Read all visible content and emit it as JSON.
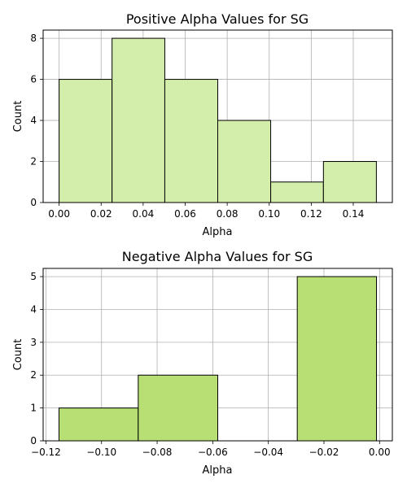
{
  "chart_data": [
    {
      "type": "bar",
      "title": "Positive Alpha Values for SG",
      "xlabel": "Alpha",
      "ylabel": "Count",
      "bin_edges": [
        0.0,
        0.0252,
        0.0503,
        0.0755,
        0.1007,
        0.1258,
        0.151
      ],
      "values": [
        6,
        8,
        6,
        4,
        1,
        2
      ],
      "xlim": [
        -0.0076,
        0.1586
      ],
      "ylim": [
        0,
        8.4
      ],
      "xticks": [
        0.0,
        0.02,
        0.04,
        0.06,
        0.08,
        0.1,
        0.12,
        0.14
      ],
      "xtick_labels": [
        "0.00",
        "0.02",
        "0.04",
        "0.06",
        "0.08",
        "0.10",
        "0.12",
        "0.14"
      ],
      "yticks": [
        0,
        2,
        4,
        6,
        8
      ],
      "ytick_labels": [
        "0",
        "2",
        "4",
        "6",
        "8"
      ],
      "grid": true,
      "color": "#d3edaa"
    },
    {
      "type": "bar",
      "title": "Negative Alpha Values for SG",
      "xlabel": "Alpha",
      "ylabel": "Count",
      "bin_edges": [
        -0.1153,
        -0.0868,
        -0.0582,
        -0.0296,
        -0.0011
      ],
      "values": [
        1,
        2,
        0,
        5
      ],
      "xlim": [
        -0.121,
        0.0046
      ],
      "ylim": [
        0,
        5.25
      ],
      "xticks": [
        -0.12,
        -0.1,
        -0.08,
        -0.06,
        -0.04,
        -0.02,
        0.0
      ],
      "xtick_labels": [
        "−0.12",
        "−0.10",
        "−0.08",
        "−0.06",
        "−0.04",
        "−0.02",
        "0.00"
      ],
      "yticks": [
        0,
        1,
        2,
        3,
        4,
        5
      ],
      "ytick_labels": [
        "0",
        "1",
        "2",
        "3",
        "4",
        "5"
      ],
      "grid": true,
      "color": "#b8df74"
    }
  ]
}
